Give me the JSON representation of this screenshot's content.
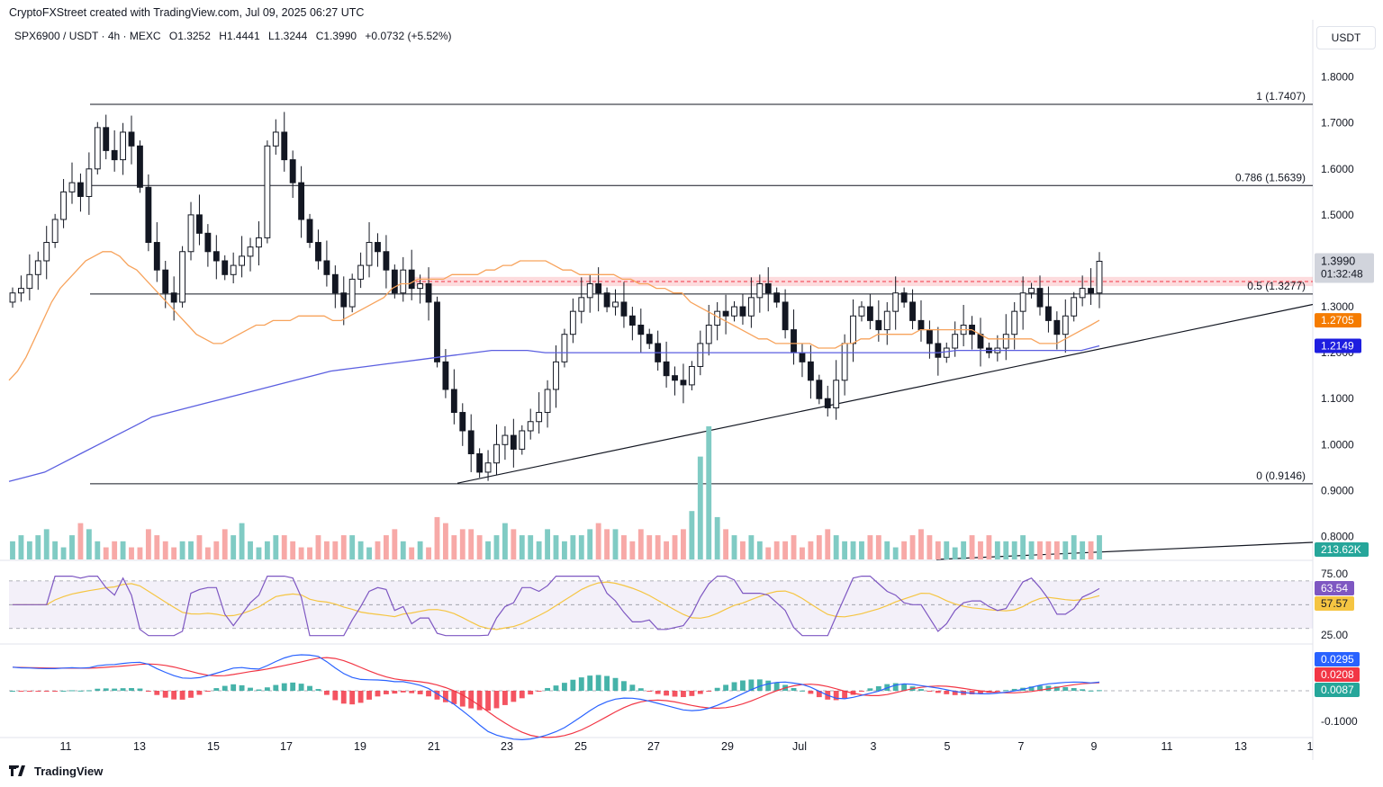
{
  "header": {
    "credit": "CryptoFXStreet created with TradingView.com, Jul 09, 2025 06:27 UTC",
    "symbol": "SPX6900 / USDT · 4h · MEXC",
    "open": "O1.3252",
    "high": "H1.4441",
    "low": "L1.3244",
    "close": "C1.3990",
    "change": "+0.0732 (+5.52%)",
    "currency": "USDT"
  },
  "footer": {
    "brand": "TradingView"
  },
  "colors": {
    "up": "#26a69a",
    "down": "#131722",
    "upVol": "#80cbc4",
    "downVol": "#f7a9a7",
    "ema50": "#f7a35c",
    "ema200": "#5b5fe0",
    "rsi": "#7e57c2",
    "rsiMa": "#f5c542",
    "macd": "#2962ff",
    "signal": "#f23645",
    "resistance": "#f23645"
  },
  "chart_data": [
    {
      "type": "candlestick",
      "panel": "price",
      "ylim": [
        0.75,
        1.86
      ],
      "yticks": [
        "1.8000",
        "1.7000",
        "1.6000",
        "1.5000",
        "1.4000",
        "1.3000",
        "1.2000",
        "1.1000",
        "1.0000",
        "0.9000",
        "0.8000"
      ],
      "ytick_values": [
        1.8,
        1.7,
        1.6,
        1.5,
        1.4,
        1.3,
        1.2,
        1.1,
        1.0,
        0.9,
        0.8
      ],
      "xticks": [
        "11",
        "13",
        "15",
        "17",
        "19",
        "21",
        "23",
        "25",
        "27",
        "29",
        "Jul",
        "3",
        "5",
        "7",
        "9",
        "11",
        "13",
        "1"
      ],
      "fib_levels": [
        {
          "label": "1 (1.7407)",
          "value": 1.7407
        },
        {
          "label": "0.786 (1.5639)",
          "value": 1.5639
        },
        {
          "label": "0.5 (1.3277)",
          "value": 1.3277
        },
        {
          "label": "0 (0.9146)",
          "value": 0.9146
        }
      ],
      "resistance_zone": [
        1.345,
        1.365
      ],
      "trendline": {
        "from": [
          "Jun 21",
          0.916
        ],
        "to": [
          "Jul 13+",
          1.305
        ]
      },
      "price_labels": [
        {
          "label": "1.3990",
          "sublabel": "01:32:48",
          "value": 1.399
        },
        {
          "label": "1.2705",
          "value": 1.2705
        },
        {
          "label": "1.2149",
          "value": 1.2149
        }
      ],
      "close_path": [
        1.33,
        1.34,
        1.37,
        1.4,
        1.44,
        1.49,
        1.55,
        1.57,
        1.54,
        1.6,
        1.69,
        1.64,
        1.62,
        1.68,
        1.65,
        1.56,
        1.44,
        1.38,
        1.33,
        1.31,
        1.42,
        1.5,
        1.46,
        1.42,
        1.4,
        1.37,
        1.39,
        1.41,
        1.43,
        1.45,
        1.65,
        1.68,
        1.62,
        1.57,
        1.49,
        1.44,
        1.4,
        1.37,
        1.33,
        1.3,
        1.36,
        1.39,
        1.44,
        1.42,
        1.38,
        1.33,
        1.38,
        1.34,
        1.35,
        1.31,
        1.18,
        1.12,
        1.07,
        1.03,
        0.98,
        0.94,
        0.96,
        1.0,
        1.02,
        0.99,
        1.03,
        1.05,
        1.07,
        1.12,
        1.18,
        1.24,
        1.29,
        1.32,
        1.35,
        1.33,
        1.3,
        1.31,
        1.28,
        1.26,
        1.24,
        1.22,
        1.18,
        1.15,
        1.14,
        1.13,
        1.17,
        1.22,
        1.26,
        1.29,
        1.28,
        1.3,
        1.28,
        1.32,
        1.35,
        1.33,
        1.31,
        1.25,
        1.2,
        1.18,
        1.14,
        1.1,
        1.08,
        1.14,
        1.22,
        1.28,
        1.3,
        1.27,
        1.25,
        1.29,
        1.33,
        1.31,
        1.27,
        1.25,
        1.22,
        1.19,
        1.21,
        1.24,
        1.26,
        1.24,
        1.21,
        1.2,
        1.21,
        1.24,
        1.29,
        1.33,
        1.34,
        1.3,
        1.27,
        1.24,
        1.28,
        1.32,
        1.34,
        1.33,
        1.399
      ],
      "ema50_path": [
        1.14,
        1.16,
        1.19,
        1.23,
        1.27,
        1.31,
        1.34,
        1.36,
        1.38,
        1.4,
        1.41,
        1.42,
        1.42,
        1.41,
        1.39,
        1.38,
        1.36,
        1.34,
        1.32,
        1.3,
        1.28,
        1.26,
        1.24,
        1.23,
        1.22,
        1.22,
        1.23,
        1.24,
        1.25,
        1.26,
        1.26,
        1.27,
        1.27,
        1.27,
        1.28,
        1.28,
        1.28,
        1.28,
        1.27,
        1.27,
        1.28,
        1.29,
        1.3,
        1.31,
        1.32,
        1.34,
        1.35,
        1.35,
        1.36,
        1.36,
        1.36,
        1.36,
        1.37,
        1.37,
        1.37,
        1.37,
        1.38,
        1.38,
        1.39,
        1.39,
        1.4,
        1.4,
        1.4,
        1.4,
        1.39,
        1.38,
        1.38,
        1.37,
        1.37,
        1.37,
        1.37,
        1.37,
        1.36,
        1.36,
        1.35,
        1.35,
        1.34,
        1.34,
        1.33,
        1.33,
        1.31,
        1.3,
        1.29,
        1.28,
        1.27,
        1.26,
        1.25,
        1.24,
        1.23,
        1.23,
        1.22,
        1.22,
        1.22,
        1.22,
        1.22,
        1.21,
        1.21,
        1.21,
        1.22,
        1.22,
        1.23,
        1.23,
        1.24,
        1.24,
        1.24,
        1.24,
        1.24,
        1.25,
        1.25,
        1.25,
        1.25,
        1.25,
        1.25,
        1.25,
        1.24,
        1.23,
        1.23,
        1.23,
        1.23,
        1.23,
        1.23,
        1.22,
        1.22,
        1.22,
        1.23,
        1.24,
        1.25,
        1.26,
        1.2705
      ],
      "ema200_path": [
        0.92,
        0.93,
        0.94,
        0.96,
        0.98,
        1.0,
        1.02,
        1.04,
        1.06,
        1.07,
        1.08,
        1.09,
        1.1,
        1.11,
        1.12,
        1.13,
        1.14,
        1.15,
        1.16,
        1.165,
        1.17,
        1.175,
        1.18,
        1.185,
        1.19,
        1.195,
        1.2,
        1.205,
        1.205,
        1.205,
        1.2,
        1.2,
        1.2,
        1.2,
        1.2,
        1.2,
        1.2,
        1.2,
        1.2,
        1.2,
        1.2,
        1.2,
        1.2,
        1.2,
        1.2,
        1.2,
        1.2,
        1.2,
        1.2,
        1.2,
        1.2,
        1.2,
        1.2,
        1.205,
        1.205,
        1.205,
        1.205,
        1.205,
        1.205,
        1.205,
        1.205,
        1.2149
      ]
    },
    {
      "type": "bar",
      "panel": "volume",
      "label": "213.62K",
      "values": [
        3,
        4,
        3,
        4,
        5,
        3,
        2,
        4,
        6,
        5,
        3,
        2,
        3,
        3,
        2,
        2,
        5,
        4,
        3,
        2,
        3,
        3,
        4,
        2,
        3,
        5,
        4,
        6,
        3,
        2,
        3,
        4,
        4,
        3,
        2,
        2,
        4,
        3,
        3,
        4,
        4,
        3,
        2,
        3,
        4,
        5,
        3,
        2,
        3,
        2,
        7,
        6,
        4,
        5,
        5,
        4,
        3,
        4,
        6,
        5,
        4,
        4,
        3,
        5,
        4,
        3,
        4,
        4,
        5,
        6,
        5,
        5,
        4,
        3,
        5,
        4,
        4,
        3,
        4,
        5,
        8,
        17,
        22,
        7,
        5,
        4,
        3,
        4,
        3,
        2,
        3,
        3,
        4,
        2,
        3,
        4,
        5,
        4,
        3,
        3,
        3,
        4,
        4,
        3,
        2,
        3,
        4,
        5,
        4,
        3,
        3,
        2,
        3,
        4,
        3,
        4,
        3,
        3,
        3,
        4,
        3,
        3,
        3,
        3,
        3,
        4,
        3,
        3,
        4
      ]
    },
    {
      "type": "line",
      "panel": "rsi",
      "yticks": [
        "75.00",
        "25.00"
      ],
      "ylim": [
        20,
        82
      ],
      "labels": [
        {
          "label": "63.54",
          "value": 63.54
        },
        {
          "label": "57.57",
          "value": 57.57
        }
      ],
      "bands": [
        70,
        50,
        30
      ]
    },
    {
      "type": "line",
      "panel": "macd",
      "yticks": [
        "-0.1000"
      ],
      "labels": [
        {
          "label": "0.0295",
          "value": 0.0295
        },
        {
          "label": "0.0208",
          "value": 0.0208
        },
        {
          "label": "0.0087",
          "value": 0.0087
        }
      ]
    }
  ]
}
